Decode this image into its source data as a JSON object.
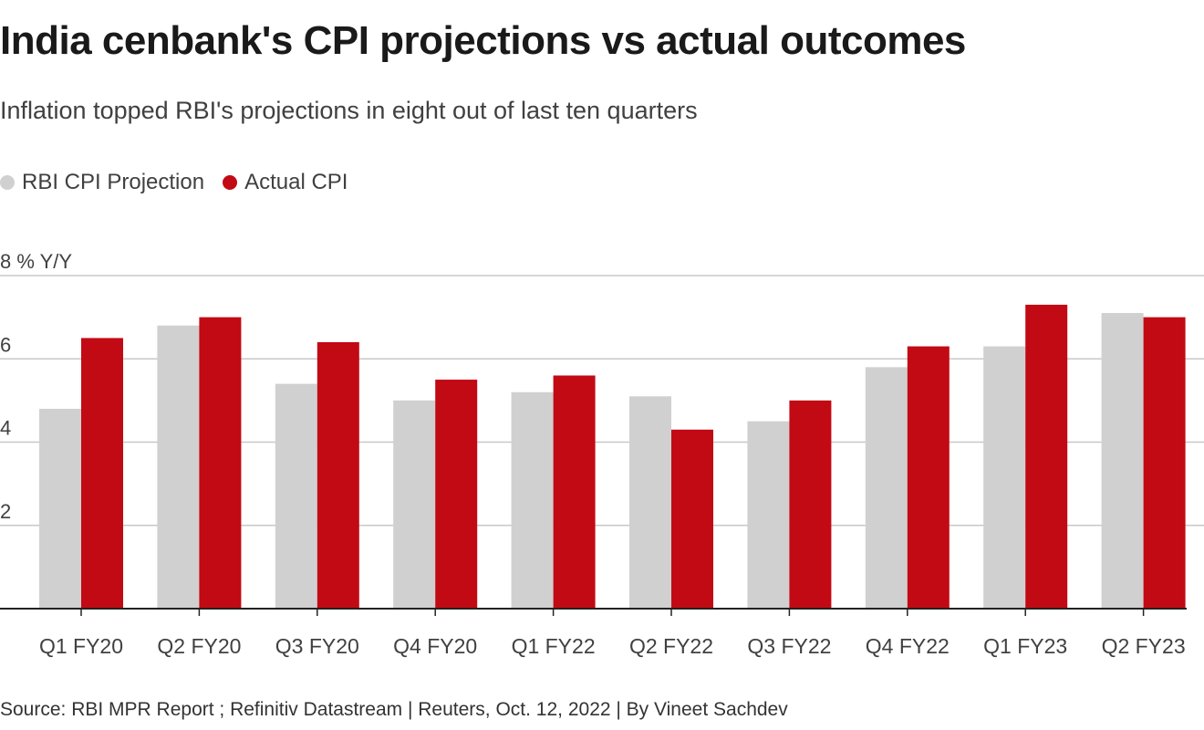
{
  "title": "India cenbank's CPI projections vs actual outcomes",
  "subtitle": "Inflation topped RBI's projections in eight out of last ten quarters",
  "source": "Source: RBI MPR Report ; Refinitiv Datastream | Reuters, Oct. 12, 2022 | By Vineet Sachdev",
  "chart_data": {
    "type": "bar",
    "title": "India cenbank's CPI projections vs actual outcomes",
    "ylabel": "% Y/Y",
    "ylim": [
      0,
      8
    ],
    "yticks": [
      "2",
      "4",
      "6",
      "8 % Y/Y"
    ],
    "yticks_values": [
      2,
      4,
      6,
      8
    ],
    "grid": true,
    "legend": "top-left",
    "categories": [
      "Q1 FY20",
      "Q2 FY20",
      "Q3 FY20",
      "Q4 FY20",
      "Q1 FY22",
      "Q2 FY22",
      "Q3 FY22",
      "Q4 FY22",
      "Q1 FY23",
      "Q2 FY23"
    ],
    "series": [
      {
        "name": "RBI CPI Projection",
        "color": "#d0d0d0",
        "values": [
          4.8,
          6.8,
          5.4,
          5.0,
          5.2,
          5.1,
          4.5,
          5.8,
          6.3,
          7.1
        ]
      },
      {
        "name": "Actual CPI",
        "color": "#c20a14",
        "values": [
          6.5,
          7.0,
          6.4,
          5.5,
          5.6,
          4.3,
          5.0,
          6.3,
          7.3,
          7.0
        ]
      }
    ]
  }
}
